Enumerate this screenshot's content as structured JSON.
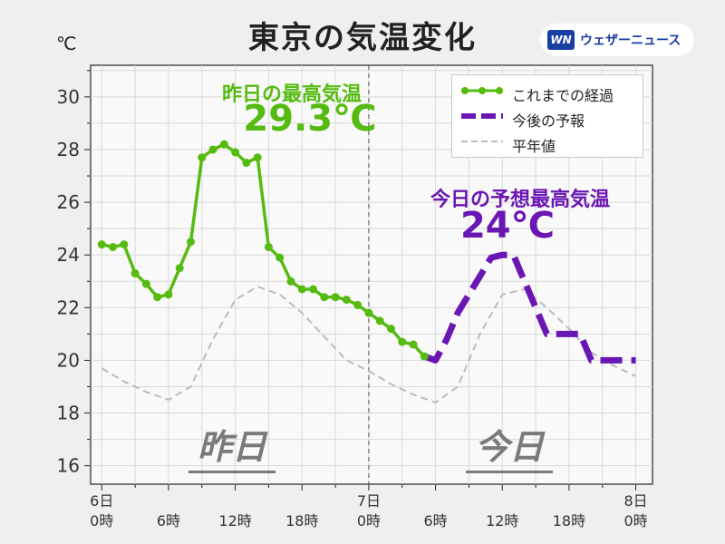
{
  "title": "東京の気温変化",
  "unit_label": "℃",
  "brand": {
    "logo_text": "WN",
    "name": "ウェザーニュース"
  },
  "colors": {
    "observed": "#55bb11",
    "forecast": "#6a16b5",
    "normal": "#bbbbbb",
    "daylabel": "#7a7a7a"
  },
  "legend": {
    "observed": "これまでの経過",
    "forecast": "今後の予報",
    "normal": "平年値"
  },
  "annotations": {
    "yesterday_max_label": "昨日の最高気温",
    "yesterday_max_value": "29.3℃",
    "today_max_label": "今日の予想最高気温",
    "today_max_value": "24℃",
    "yesterday_day": "昨日",
    "today_day": "今日"
  },
  "chart_data": {
    "type": "line",
    "x_unit": "hours from 6日 0時",
    "xlim": [
      -1,
      49.5
    ],
    "ylim": [
      15.3,
      31.2
    ],
    "yticks": [
      16,
      18,
      20,
      22,
      24,
      26,
      28,
      30
    ],
    "xticks": [
      {
        "x": 0,
        "line1": "6日",
        "line2": "0時"
      },
      {
        "x": 6,
        "line1": "",
        "line2": "6時"
      },
      {
        "x": 12,
        "line1": "",
        "line2": "12時"
      },
      {
        "x": 18,
        "line1": "",
        "line2": "18時"
      },
      {
        "x": 24,
        "line1": "7日",
        "line2": "0時"
      },
      {
        "x": 30,
        "line1": "",
        "line2": "6時"
      },
      {
        "x": 36,
        "line1": "",
        "line2": "12時"
      },
      {
        "x": 42,
        "line1": "",
        "line2": "18時"
      },
      {
        "x": 48,
        "line1": "8日",
        "line2": "0時"
      }
    ],
    "divider_x": 24,
    "grid": true,
    "series": [
      {
        "name": "これまでの経過",
        "style": "solid-markers",
        "x": [
          0,
          1,
          2,
          3,
          4,
          5,
          6,
          7,
          8,
          9,
          10,
          11,
          12,
          13,
          14,
          15,
          16,
          17,
          18,
          19,
          20,
          21,
          22,
          23,
          24,
          25,
          26,
          27,
          28,
          29
        ],
        "y": [
          24.4,
          24.3,
          24.4,
          23.3,
          22.9,
          22.4,
          22.5,
          23.5,
          24.5,
          27.7,
          28.0,
          28.2,
          27.9,
          27.5,
          27.7,
          24.3,
          23.9,
          23.0,
          22.7,
          22.7,
          22.4,
          22.4,
          22.3,
          22.1,
          21.8,
          21.5,
          21.2,
          20.7,
          20.6,
          20.15
        ]
      },
      {
        "name": "今後の予報",
        "style": "dashed",
        "x": [
          29,
          30,
          31,
          32,
          33,
          34,
          35,
          36,
          37,
          38,
          39,
          40,
          41,
          42,
          43,
          44,
          45,
          46,
          47,
          48
        ],
        "y": [
          20.15,
          20.0,
          20.8,
          21.8,
          22.5,
          23.2,
          23.9,
          24.0,
          24.0,
          23.0,
          22.0,
          21.0,
          21.0,
          21.0,
          21.0,
          20.0,
          20.0,
          20.0,
          20.0,
          20.0
        ]
      },
      {
        "name": "平年値",
        "style": "dashed-thin",
        "x": [
          0,
          2,
          4,
          6,
          8,
          10,
          12,
          14,
          16,
          18,
          20,
          22,
          24,
          26,
          28,
          30,
          32,
          34,
          36,
          38,
          40,
          42,
          44,
          46,
          48
        ],
        "y": [
          19.7,
          19.2,
          18.8,
          18.5,
          19.0,
          20.8,
          22.3,
          22.8,
          22.5,
          21.8,
          20.9,
          20.0,
          19.6,
          19.1,
          18.7,
          18.4,
          19.0,
          21.0,
          22.5,
          22.7,
          22.0,
          21.2,
          20.3,
          19.8,
          19.4
        ]
      }
    ]
  }
}
